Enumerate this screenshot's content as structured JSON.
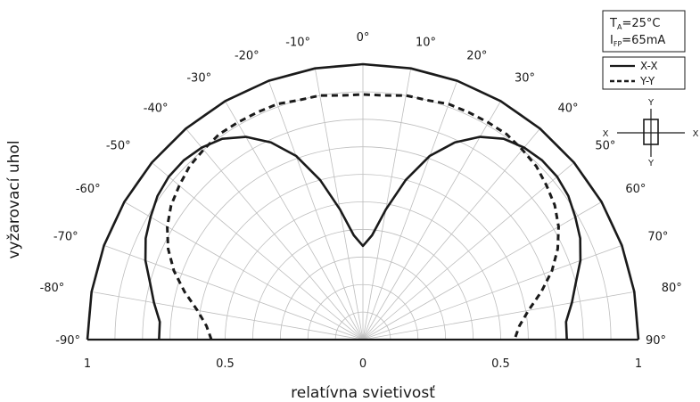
{
  "chart_data": {
    "type": "polar",
    "xlabel": "relatívna svietivosť",
    "ylabel": "vyžarovací uhol",
    "angle_range": [
      -90,
      90
    ],
    "radius_range": [
      0,
      1
    ],
    "angle_ticks": [
      {
        "deg": -90,
        "label": "-90°"
      },
      {
        "deg": -80,
        "label": "-80°"
      },
      {
        "deg": -70,
        "label": "-70°"
      },
      {
        "deg": -60,
        "label": "-60°"
      },
      {
        "deg": -50,
        "label": "-50°"
      },
      {
        "deg": -40,
        "label": "-40°"
      },
      {
        "deg": -30,
        "label": "-30°"
      },
      {
        "deg": -20,
        "label": "-20°"
      },
      {
        "deg": -10,
        "label": "-10°"
      },
      {
        "deg": 0,
        "label": "0°"
      },
      {
        "deg": 10,
        "label": "10°"
      },
      {
        "deg": 20,
        "label": "20°"
      },
      {
        "deg": 30,
        "label": "30°"
      },
      {
        "deg": 40,
        "label": "40°"
      },
      {
        "deg": 50,
        "label": "50°"
      },
      {
        "deg": 60,
        "label": "60°"
      },
      {
        "deg": 70,
        "label": "70°"
      },
      {
        "deg": 80,
        "label": "80°"
      },
      {
        "deg": 90,
        "label": "90°"
      }
    ],
    "radius_ticks": [
      {
        "pos": -1,
        "label": "1"
      },
      {
        "pos": -0.5,
        "label": "0.5"
      },
      {
        "pos": 0,
        "label": "0"
      },
      {
        "pos": 0.5,
        "label": "0.5"
      },
      {
        "pos": 1,
        "label": "1"
      }
    ],
    "grid": true,
    "legend_position": "top-right",
    "series": [
      {
        "name": "X-X",
        "style": "solid",
        "points": [
          {
            "angle": -90,
            "r": 0.74
          },
          {
            "angle": -85,
            "r": 0.74
          },
          {
            "angle": -80,
            "r": 0.77
          },
          {
            "angle": -75,
            "r": 0.8
          },
          {
            "angle": -70,
            "r": 0.84
          },
          {
            "angle": -65,
            "r": 0.87
          },
          {
            "angle": -60,
            "r": 0.89
          },
          {
            "angle": -55,
            "r": 0.91
          },
          {
            "angle": -50,
            "r": 0.92
          },
          {
            "angle": -45,
            "r": 0.92
          },
          {
            "angle": -40,
            "r": 0.91
          },
          {
            "angle": -35,
            "r": 0.89
          },
          {
            "angle": -30,
            "r": 0.85
          },
          {
            "angle": -25,
            "r": 0.79
          },
          {
            "angle": -20,
            "r": 0.71
          },
          {
            "angle": -15,
            "r": 0.6
          },
          {
            "angle": -10,
            "r": 0.48
          },
          {
            "angle": -5,
            "r": 0.38
          },
          {
            "angle": 0,
            "r": 0.34
          },
          {
            "angle": 5,
            "r": 0.38
          },
          {
            "angle": 10,
            "r": 0.48
          },
          {
            "angle": 15,
            "r": 0.6
          },
          {
            "angle": 20,
            "r": 0.71
          },
          {
            "angle": 25,
            "r": 0.79
          },
          {
            "angle": 30,
            "r": 0.85
          },
          {
            "angle": 35,
            "r": 0.89
          },
          {
            "angle": 40,
            "r": 0.91
          },
          {
            "angle": 45,
            "r": 0.92
          },
          {
            "angle": 50,
            "r": 0.92
          },
          {
            "angle": 55,
            "r": 0.91
          },
          {
            "angle": 60,
            "r": 0.89
          },
          {
            "angle": 65,
            "r": 0.87
          },
          {
            "angle": 70,
            "r": 0.84
          },
          {
            "angle": 75,
            "r": 0.8
          },
          {
            "angle": 80,
            "r": 0.77
          },
          {
            "angle": 85,
            "r": 0.74
          },
          {
            "angle": 90,
            "r": 0.74
          }
        ]
      },
      {
        "name": "Y-Y",
        "style": "dashed",
        "points": [
          {
            "angle": -90,
            "r": 0.55
          },
          {
            "angle": -85,
            "r": 0.57
          },
          {
            "angle": -80,
            "r": 0.61
          },
          {
            "angle": -75,
            "r": 0.67
          },
          {
            "angle": -70,
            "r": 0.73
          },
          {
            "angle": -65,
            "r": 0.78
          },
          {
            "angle": -60,
            "r": 0.82
          },
          {
            "angle": -55,
            "r": 0.85
          },
          {
            "angle": -50,
            "r": 0.87
          },
          {
            "angle": -45,
            "r": 0.89
          },
          {
            "angle": -40,
            "r": 0.9
          },
          {
            "angle": -35,
            "r": 0.91
          },
          {
            "angle": -30,
            "r": 0.91
          },
          {
            "angle": -25,
            "r": 0.91
          },
          {
            "angle": -20,
            "r": 0.91
          },
          {
            "angle": -15,
            "r": 0.9
          },
          {
            "angle": -10,
            "r": 0.9
          },
          {
            "angle": -5,
            "r": 0.89
          },
          {
            "angle": 0,
            "r": 0.89
          },
          {
            "angle": 5,
            "r": 0.89
          },
          {
            "angle": 10,
            "r": 0.9
          },
          {
            "angle": 15,
            "r": 0.9
          },
          {
            "angle": 20,
            "r": 0.91
          },
          {
            "angle": 25,
            "r": 0.91
          },
          {
            "angle": 30,
            "r": 0.91
          },
          {
            "angle": 35,
            "r": 0.91
          },
          {
            "angle": 40,
            "r": 0.9
          },
          {
            "angle": 45,
            "r": 0.89
          },
          {
            "angle": 50,
            "r": 0.87
          },
          {
            "angle": 55,
            "r": 0.85
          },
          {
            "angle": 60,
            "r": 0.82
          },
          {
            "angle": 65,
            "r": 0.78
          },
          {
            "angle": 70,
            "r": 0.73
          },
          {
            "angle": 75,
            "r": 0.67
          },
          {
            "angle": 80,
            "r": 0.61
          },
          {
            "angle": 85,
            "r": 0.57
          },
          {
            "angle": 90,
            "r": 0.55
          }
        ]
      },
      {
        "name": "",
        "style": "solid",
        "points": [
          {
            "angle": -90,
            "r": 1.0
          },
          {
            "angle": -80,
            "r": 1.0
          },
          {
            "angle": -70,
            "r": 1.0
          },
          {
            "angle": -60,
            "r": 1.0
          },
          {
            "angle": -50,
            "r": 1.0
          },
          {
            "angle": -40,
            "r": 1.0
          },
          {
            "angle": -30,
            "r": 1.0
          },
          {
            "angle": -20,
            "r": 1.0
          },
          {
            "angle": -10,
            "r": 1.0
          },
          {
            "angle": 0,
            "r": 1.0
          },
          {
            "angle": 10,
            "r": 1.0
          },
          {
            "angle": 20,
            "r": 1.0
          },
          {
            "angle": 30,
            "r": 1.0
          },
          {
            "angle": 40,
            "r": 1.0
          },
          {
            "angle": 50,
            "r": 1.0
          },
          {
            "angle": 60,
            "r": 1.0
          },
          {
            "angle": 70,
            "r": 1.0
          },
          {
            "angle": 80,
            "r": 1.0
          },
          {
            "angle": 90,
            "r": 1.0
          }
        ]
      }
    ],
    "legend": [
      {
        "label": "X-X",
        "style": "solid"
      },
      {
        "label": "Y-Y",
        "style": "dashed"
      }
    ],
    "conditions": {
      "line1": {
        "main": "T",
        "sub": "A",
        "rest": "=25°C"
      },
      "line2": {
        "main": "I",
        "sub": "FP",
        "rest": "=65mA"
      }
    },
    "orientation": {
      "x_label": "X",
      "y_label": "Y"
    }
  }
}
